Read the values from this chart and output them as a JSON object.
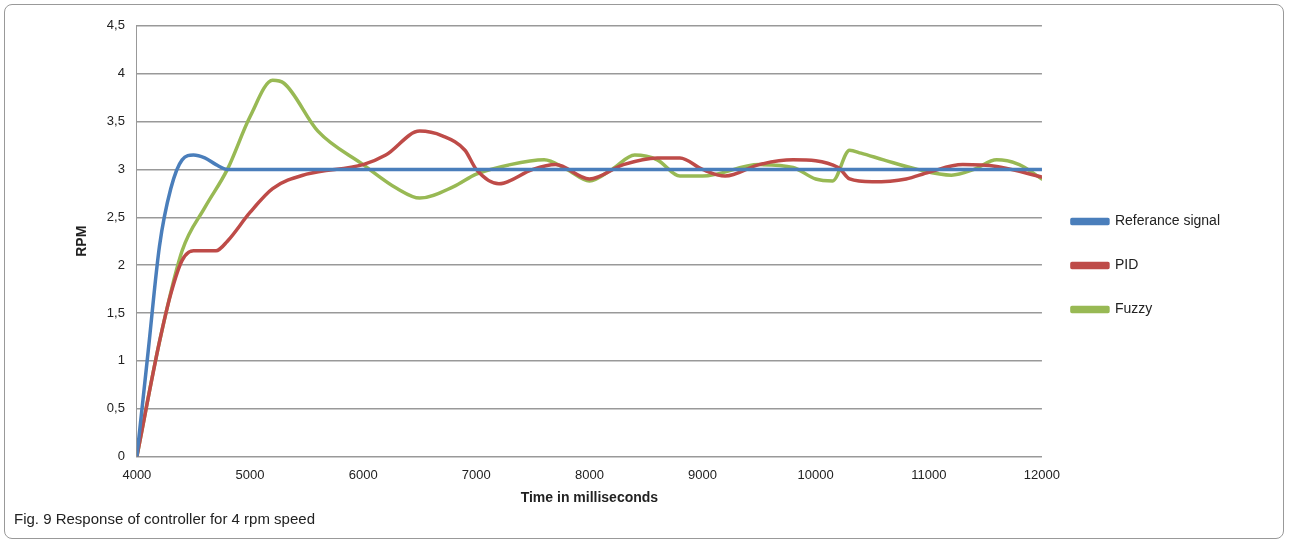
{
  "chart_data": {
    "type": "line",
    "xlabel": "Time in milliseconds",
    "ylabel": "RPM",
    "xlim": [
      4000,
      12000
    ],
    "xticks": [
      4000,
      5000,
      6000,
      7000,
      8000,
      9000,
      10000,
      11000,
      12000
    ],
    "ylim": [
      0,
      4.5
    ],
    "yticks": [
      0,
      {
        "value": 0.5,
        "label": "0,5"
      },
      1,
      {
        "value": 1.5,
        "label": "1,5"
      },
      2,
      {
        "value": 2.5,
        "label": "2,5"
      },
      3,
      {
        "value": 3.5,
        "label": "3,5"
      },
      4,
      {
        "value": 4.5,
        "label": "4,5"
      }
    ],
    "grid": "y",
    "legend": "right",
    "marker": "none",
    "line_style": "solid",
    "annotations": [
      "Fig. 9  Response of controller for 4 rpm speed"
    ],
    "series": [
      {
        "name": "Referance signal",
        "color": "#4a7ebb",
        "x": [
          4000,
          4100,
          4200,
          4300,
          4400,
          4500,
          4600,
          4700,
          4800,
          5000,
          6000,
          7000,
          8000,
          9000,
          10000,
          11000,
          12000
        ],
        "values": [
          0,
          1.1,
          2.2,
          2.8,
          3.1,
          3.15,
          3.12,
          3.05,
          3.0,
          3,
          3,
          3,
          3,
          3,
          3,
          3,
          3
        ]
      },
      {
        "name": "PID",
        "color": "#be4b48",
        "x": [
          4000,
          4200,
          4300,
          4400,
          4500,
          4600,
          4700,
          4800,
          5000,
          5200,
          5500,
          6000,
          6200,
          6500,
          6700,
          6900,
          7000,
          7200,
          7500,
          7700,
          8000,
          8300,
          8600,
          8800,
          9000,
          9200,
          9500,
          9800,
          10200,
          10300,
          10500,
          10800,
          11000,
          11300,
          11600,
          12000
        ],
        "values": [
          0,
          1.2,
          1.7,
          2.05,
          2.15,
          2.15,
          2.15,
          2.25,
          2.55,
          2.8,
          2.95,
          3.05,
          3.15,
          3.4,
          3.35,
          3.2,
          3.0,
          2.85,
          3.0,
          3.05,
          2.9,
          3.05,
          3.12,
          3.12,
          3.0,
          2.93,
          3.05,
          3.1,
          3.02,
          2.9,
          2.87,
          2.9,
          2.97,
          3.05,
          3.03,
          2.92
        ]
      },
      {
        "name": "Fuzzy",
        "color": "#98b954",
        "x": [
          4000,
          4200,
          4400,
          4600,
          4800,
          5000,
          5200,
          5300,
          5600,
          6000,
          6300,
          6500,
          6800,
          7000,
          7300,
          7600,
          7800,
          8000,
          8200,
          8400,
          8600,
          8800,
          9000,
          9500,
          9800,
          10000,
          10150,
          10300,
          10400,
          10600,
          10900,
          11200,
          11400,
          11600,
          11800,
          12000
        ],
        "values": [
          0,
          1.2,
          2.15,
          2.6,
          3.0,
          3.55,
          3.93,
          3.9,
          3.4,
          3.05,
          2.8,
          2.7,
          2.82,
          2.95,
          3.05,
          3.1,
          3.0,
          2.88,
          3.0,
          3.15,
          3.1,
          2.93,
          2.93,
          3.05,
          3.02,
          2.9,
          2.88,
          3.2,
          3.17,
          3.1,
          3.0,
          2.94,
          3.0,
          3.1,
          3.05,
          2.9
        ]
      }
    ]
  }
}
